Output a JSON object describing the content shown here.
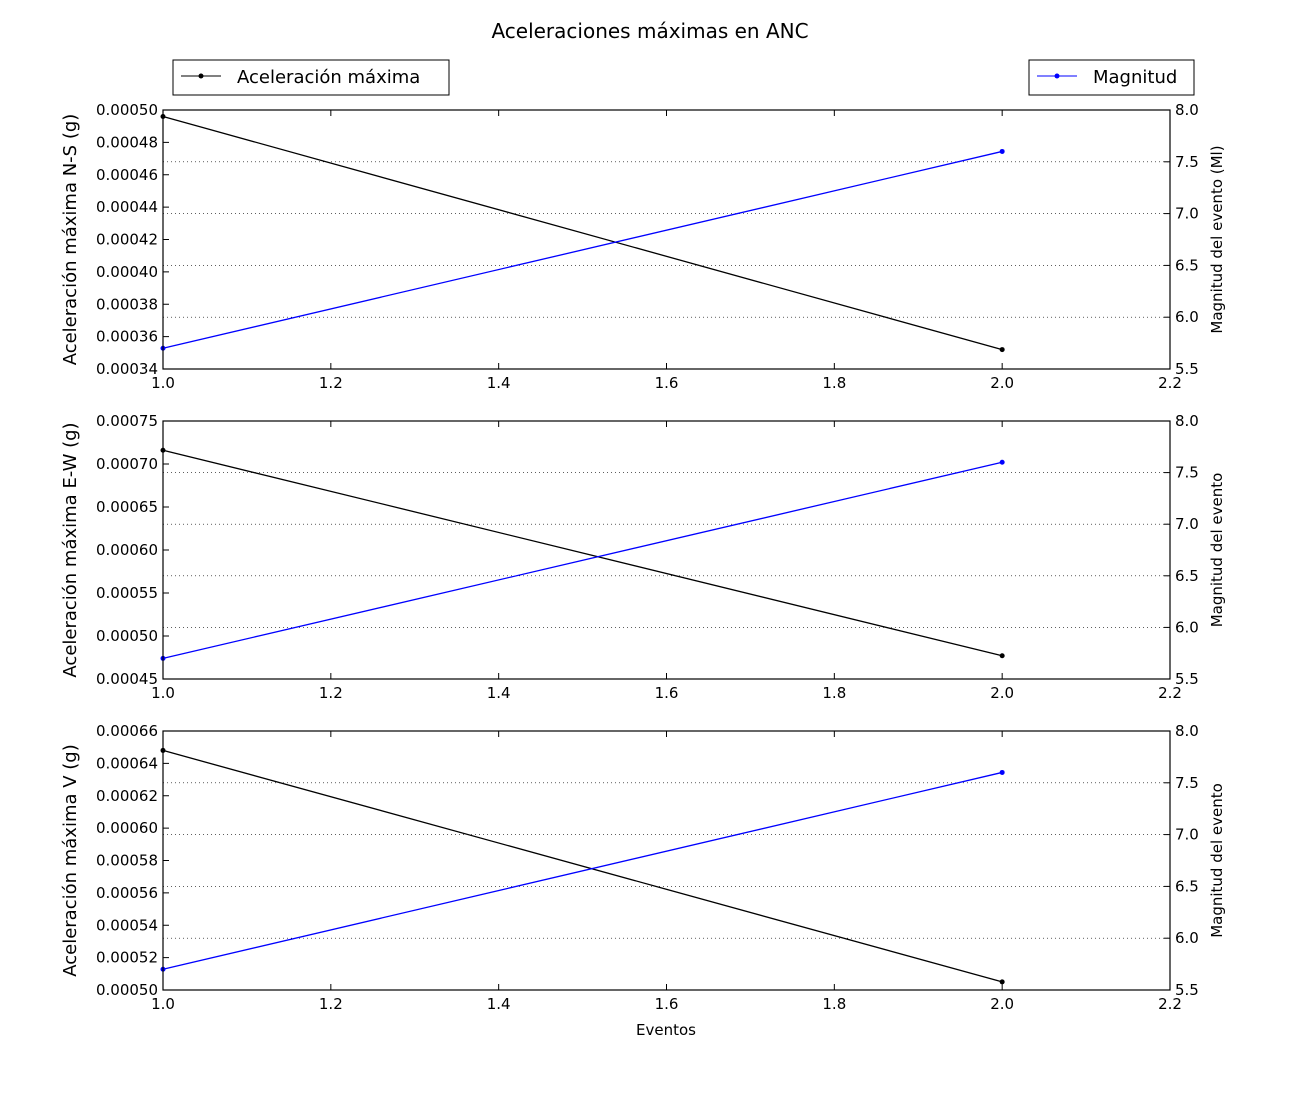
{
  "chart_data": {
    "type": "line",
    "title": "Aceleraciones máximas en ANC",
    "xlabel": "Eventos",
    "legend": {
      "left": {
        "label": "Aceleración máxima",
        "position": "top-left",
        "color": "#000000"
      },
      "right": {
        "label": "Magnitud",
        "position": "top-right",
        "color": "#0000ff"
      }
    },
    "panels": [
      {
        "ylabel_left": "Aceleración máxima N-S (g)",
        "ylabel_right": "Magnitud del evento (Ml)",
        "xlim": [
          1.0,
          2.2
        ],
        "x_ticks": [
          "1.0",
          "1.2",
          "1.4",
          "1.6",
          "1.8",
          "2.0",
          "2.2"
        ],
        "ylim_left": [
          0.00034,
          0.0005
        ],
        "y_ticks_left": [
          "0.00034",
          "0.00036",
          "0.00038",
          "0.00040",
          "0.00042",
          "0.00044",
          "0.00046",
          "0.00048",
          "0.00050"
        ],
        "ylim_right": [
          5.5,
          8.0
        ],
        "y_ticks_right": [
          "5.5",
          "6.0",
          "6.5",
          "7.0",
          "7.5",
          "8.0"
        ],
        "series": [
          {
            "name": "Aceleración máxima",
            "axis": "left",
            "color": "#000000",
            "x": [
              1.0,
              2.0
            ],
            "y": [
              0.000496,
              0.000352
            ]
          },
          {
            "name": "Magnitud",
            "axis": "right",
            "color": "#0000ff",
            "x": [
              1.0,
              2.0
            ],
            "y": [
              5.7,
              7.6
            ]
          }
        ]
      },
      {
        "ylabel_left": "Aceleración máxima E-W (g)",
        "ylabel_right": "Magnitud del evento",
        "xlim": [
          1.0,
          2.2
        ],
        "x_ticks": [
          "1.0",
          "1.2",
          "1.4",
          "1.6",
          "1.8",
          "2.0",
          "2.2"
        ],
        "ylim_left": [
          0.00045,
          0.00075
        ],
        "y_ticks_left": [
          "0.00045",
          "0.00050",
          "0.00055",
          "0.00060",
          "0.00065",
          "0.00070",
          "0.00075"
        ],
        "ylim_right": [
          5.5,
          8.0
        ],
        "y_ticks_right": [
          "5.5",
          "6.0",
          "6.5",
          "7.0",
          "7.5",
          "8.0"
        ],
        "series": [
          {
            "name": "Aceleración máxima",
            "axis": "left",
            "color": "#000000",
            "x": [
              1.0,
              2.0
            ],
            "y": [
              0.000716,
              0.000477
            ]
          },
          {
            "name": "Magnitud",
            "axis": "right",
            "color": "#0000ff",
            "x": [
              1.0,
              2.0
            ],
            "y": [
              5.7,
              7.6
            ]
          }
        ]
      },
      {
        "ylabel_left": "Aceleración máxima V (g)",
        "ylabel_right": "Magnitud del evento",
        "xlim": [
          1.0,
          2.2
        ],
        "x_ticks": [
          "1.0",
          "1.2",
          "1.4",
          "1.6",
          "1.8",
          "2.0",
          "2.2"
        ],
        "ylim_left": [
          0.0005,
          0.00066
        ],
        "y_ticks_left": [
          "0.00050",
          "0.00052",
          "0.00054",
          "0.00056",
          "0.00058",
          "0.00060",
          "0.00062",
          "0.00064",
          "0.00066"
        ],
        "ylim_right": [
          5.5,
          8.0
        ],
        "y_ticks_right": [
          "5.5",
          "6.0",
          "6.5",
          "7.0",
          "7.5",
          "8.0"
        ],
        "series": [
          {
            "name": "Aceleración máxima",
            "axis": "left",
            "color": "#000000",
            "x": [
              1.0,
              2.0
            ],
            "y": [
              0.000648,
              0.000505
            ]
          },
          {
            "name": "Magnitud",
            "axis": "right",
            "color": "#0000ff",
            "x": [
              1.0,
              2.0
            ],
            "y": [
              5.7,
              7.6
            ]
          }
        ]
      }
    ]
  }
}
